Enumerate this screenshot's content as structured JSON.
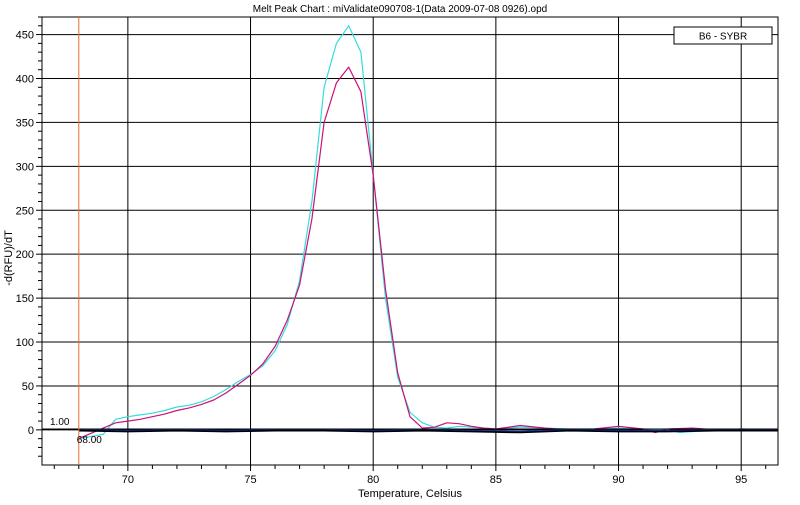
{
  "chart_data": {
    "type": "line",
    "title": "Melt Peak Chart : miValidate090708-1(Data 2009-07-08 0926).opd",
    "xlabel": "Temperature, Celsius",
    "ylabel": "-d(RFU)/dT",
    "xlim": [
      66.5,
      96.5
    ],
    "ylim": [
      -40,
      470
    ],
    "x_ticks": [
      70,
      75,
      80,
      85,
      90,
      95
    ],
    "y_ticks": [
      0,
      50,
      100,
      150,
      200,
      250,
      300,
      350,
      400,
      450
    ],
    "grid": true,
    "legend": {
      "entries": [
        "B6 - SYBR"
      ],
      "position": "top-right"
    },
    "threshold": {
      "value": 1.0,
      "label": "1.00"
    },
    "marker": {
      "x": 68.0,
      "label": "68.00"
    },
    "series": [
      {
        "color": "#33dddd",
        "x": [
          68.0,
          69.0,
          69.5,
          70.0,
          70.5,
          71.0,
          71.5,
          72.0,
          72.5,
          73.0,
          73.5,
          74.0,
          74.5,
          75.0,
          75.5,
          76.0,
          76.5,
          77.0,
          77.5,
          78.0,
          78.5,
          79.0,
          79.5,
          80.0,
          80.5,
          81.0,
          81.5,
          82.0,
          82.5,
          83.0,
          83.5,
          84.0,
          84.5,
          85.0,
          86.0,
          87.0,
          88.0,
          89.0,
          90.0,
          91.0,
          92.0,
          92.5,
          93.0,
          94.0,
          95.0,
          96.5
        ],
        "values": [
          -10,
          -5,
          12,
          15,
          17,
          19,
          22,
          26,
          28,
          32,
          38,
          46,
          55,
          63,
          73,
          90,
          120,
          170,
          260,
          390,
          440,
          460,
          430,
          290,
          150,
          60,
          20,
          8,
          3,
          2,
          4,
          3,
          2,
          1,
          3,
          2,
          1,
          1,
          2,
          1,
          0,
          -3,
          -2,
          0,
          1,
          0
        ]
      },
      {
        "color": "#cc1177",
        "x": [
          68.0,
          69.0,
          69.5,
          70.0,
          70.5,
          71.0,
          71.5,
          72.0,
          72.5,
          73.0,
          73.5,
          74.0,
          74.5,
          75.0,
          75.5,
          76.0,
          76.5,
          77.0,
          77.5,
          78.0,
          78.5,
          79.0,
          79.5,
          80.0,
          80.5,
          81.0,
          81.5,
          82.0,
          82.5,
          83.0,
          83.5,
          84.0,
          84.5,
          85.0,
          86.0,
          87.0,
          88.0,
          89.0,
          90.0,
          91.0,
          91.5,
          92.0,
          93.0,
          94.0,
          95.0,
          96.5
        ],
        "values": [
          -10,
          2,
          8,
          10,
          12,
          15,
          18,
          22,
          25,
          29,
          34,
          42,
          52,
          62,
          75,
          95,
          125,
          165,
          240,
          350,
          395,
          413,
          385,
          290,
          160,
          65,
          15,
          2,
          3,
          8,
          7,
          4,
          2,
          1,
          5,
          2,
          0,
          1,
          4,
          1,
          -3,
          1,
          2,
          0,
          1,
          0
        ]
      },
      {
        "color": "#1133aa",
        "x": [
          68.0,
          70.0,
          72.0,
          74.0,
          76.0,
          78.0,
          80.0,
          82.0,
          84.0,
          86.0,
          88.0,
          90.0,
          92.0,
          94.0,
          96.5
        ],
        "values": [
          0,
          -1,
          0,
          -1,
          0,
          0,
          -1,
          0,
          -1,
          -2,
          0,
          -1,
          -1,
          0,
          0
        ]
      },
      {
        "color": "#000000",
        "x": [
          68.0,
          70.0,
          72.0,
          74.0,
          76.0,
          78.0,
          80.0,
          82.0,
          84.0,
          86.0,
          88.0,
          90.0,
          92.0,
          94.0,
          96.5
        ],
        "values": [
          -1,
          -2,
          -1,
          -2,
          -1,
          -1,
          -2,
          -1,
          -2,
          -3,
          -1,
          -2,
          -2,
          -1,
          -1
        ]
      }
    ]
  }
}
